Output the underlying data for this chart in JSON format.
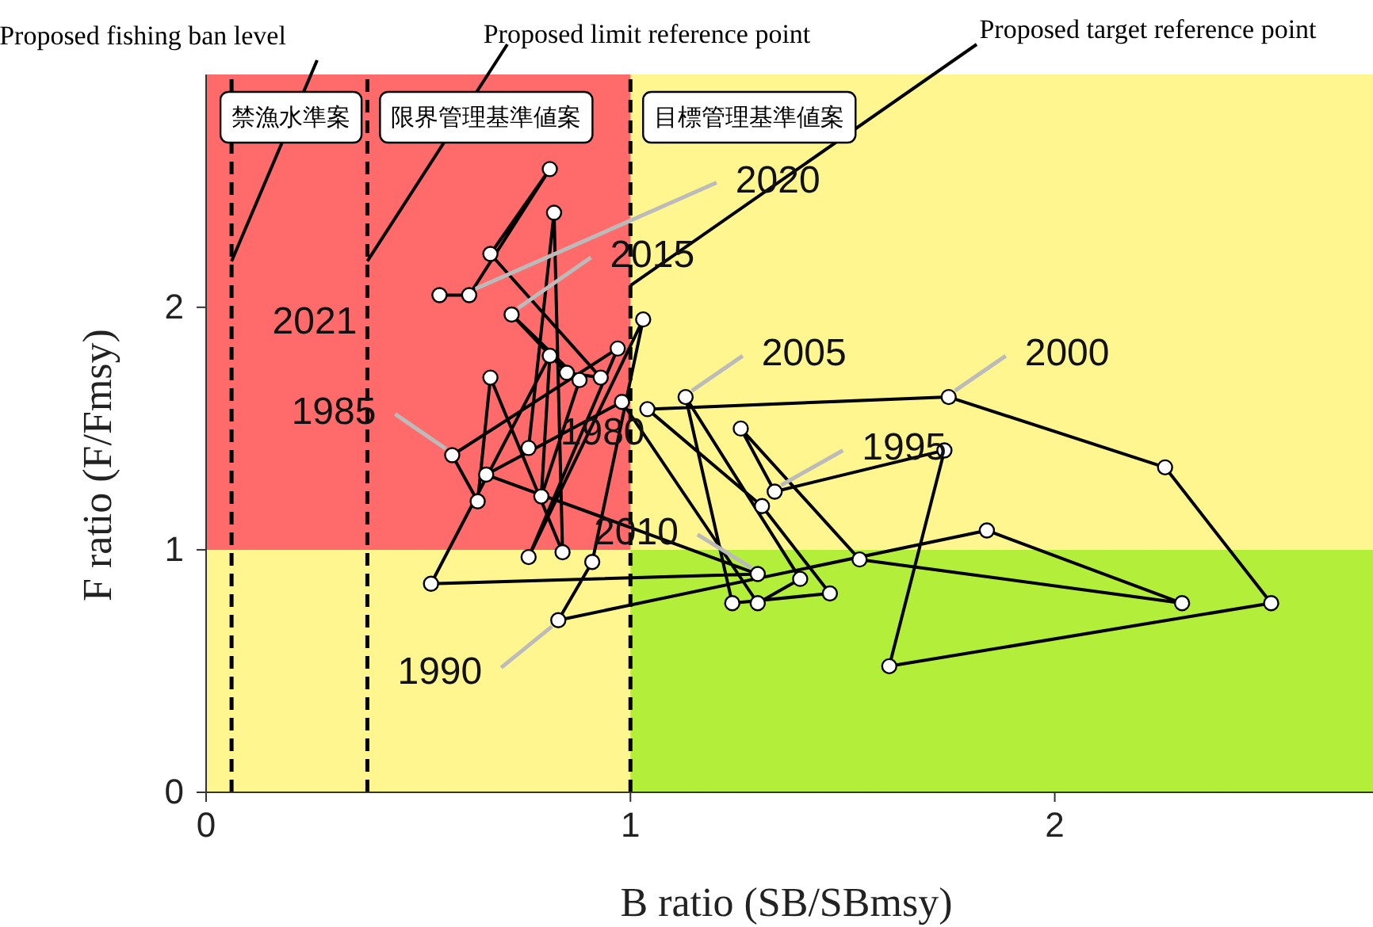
{
  "chart_data": {
    "type": "scatter",
    "xlabel": "B ratio (SB/SBmsy)",
    "ylabel": "F ratio (F/Fmsy)",
    "xlim": [
      0,
      2.75
    ],
    "ylim": [
      0,
      2.96
    ],
    "xticks": [
      0,
      1,
      2
    ],
    "yticks": [
      0,
      1,
      2
    ],
    "marker": "circle",
    "series": [
      {
        "type": "line",
        "color": "#000000",
        "x": [
          0.76,
          0.82,
          0.84,
          0.67,
          0.64,
          0.58,
          0.97,
          0.76,
          1.03,
          0.91,
          0.83,
          1.84,
          2.3,
          1.54,
          1.26,
          1.34,
          1.74,
          1.61,
          2.51,
          2.26,
          1.75,
          1.04,
          1.31,
          1.47,
          1.24,
          1.13,
          1.4,
          1.3,
          0.98,
          0.66,
          1.3,
          0.53,
          0.81,
          0.79,
          0.88,
          0.72,
          0.85,
          0.93,
          0.67,
          0.81,
          0.62,
          0.55
        ],
        "values": [
          1.42,
          2.39,
          0.99,
          1.71,
          1.2,
          1.39,
          1.83,
          0.97,
          1.95,
          0.95,
          0.71,
          1.08,
          0.78,
          0.96,
          1.5,
          1.24,
          1.41,
          0.52,
          0.78,
          1.34,
          1.63,
          1.58,
          1.18,
          0.82,
          0.78,
          1.63,
          0.88,
          0.78,
          1.61,
          1.31,
          0.9,
          0.86,
          1.8,
          1.22,
          1.7,
          1.97,
          1.73,
          1.71,
          2.22,
          2.57,
          2.05,
          2.05
        ]
      }
    ],
    "bands": [
      {
        "axis": "x",
        "from": 0,
        "to": 2.75,
        "color": "#fff68f"
      },
      {
        "axis": "y",
        "from": 1,
        "to": 2.96,
        "color": "#ff6b6b"
      },
      {
        "axis": "y",
        "from": 0,
        "to": 1,
        "color": "#b3ee3a"
      }
    ],
    "ref_lines": [
      {
        "axis": "x",
        "value": 0.06,
        "label": "禁漁水準案",
        "color": "#000000",
        "line_style": "dashed"
      },
      {
        "axis": "x",
        "value": 0.38,
        "label": "限界管理基準値案",
        "color": "#000000",
        "line_style": "dashed"
      },
      {
        "axis": "x",
        "value": 1,
        "label": "目標管理基準値案",
        "color": "#000000",
        "line_style": "dashed"
      }
    ],
    "annotations": [
      {
        "text": "Proposed fishing ban level",
        "x": 0.06,
        "y": 2.19
      },
      {
        "text": "Proposed limit reference point",
        "x": 0.38,
        "y": 2.19
      },
      {
        "text": "Proposed target reference point",
        "x": 1,
        "y": 2.09
      },
      {
        "text": "1980",
        "x": 0.76,
        "y": 1.42
      },
      {
        "text": "1985",
        "x": 0.58,
        "y": 1.39
      },
      {
        "text": "1990",
        "x": 0.83,
        "y": 0.71
      },
      {
        "text": "1995",
        "x": 1.34,
        "y": 1.24
      },
      {
        "text": "2000",
        "x": 1.75,
        "y": 1.63
      },
      {
        "text": "2005",
        "x": 1.13,
        "y": 1.63
      },
      {
        "text": "2010",
        "x": 1.3,
        "y": 0.9
      },
      {
        "text": "2015",
        "x": 0.72,
        "y": 1.97
      },
      {
        "text": "2020",
        "x": 0.62,
        "y": 2.05
      },
      {
        "text": "2021",
        "x": 0.55,
        "y": 2.05
      }
    ]
  }
}
